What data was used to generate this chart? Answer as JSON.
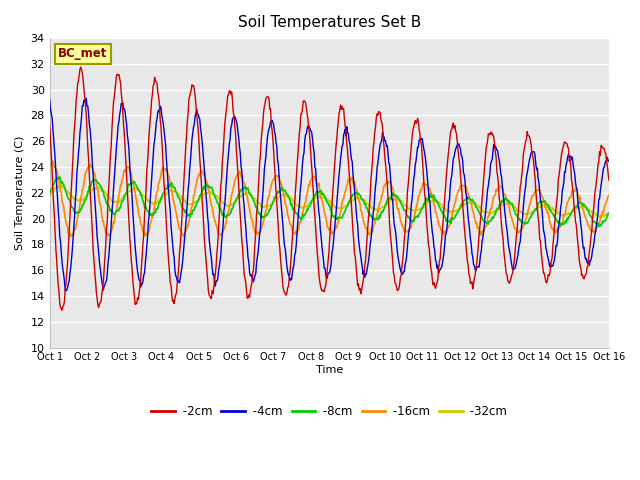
{
  "title": "Soil Temperatures Set B",
  "xlabel": "Time",
  "ylabel": "Soil Temperature (C)",
  "ylim": [
    10,
    34
  ],
  "yticks": [
    10,
    12,
    14,
    16,
    18,
    20,
    22,
    24,
    26,
    28,
    30,
    32,
    34
  ],
  "annotation": "BC_met",
  "bg_color": "#e8e8e8",
  "series_colors": {
    "-2cm": "#cc0000",
    "-4cm": "#0000cc",
    "-8cm": "#00cc00",
    "-16cm": "#ff8800",
    "-32cm": "#cccc00"
  },
  "n_days": 15,
  "x_labels": [
    "Oct 1",
    "Oct 2",
    "Oct 3",
    "Oct 4",
    "Oct 5",
    "Oct 6",
    "Oct 7",
    "Oct 8",
    "Oct 9",
    "Oct 10",
    "Oct 11",
    "Oct 12",
    "Oct 13",
    "Oct 14",
    "Oct 15",
    "Oct 16"
  ]
}
